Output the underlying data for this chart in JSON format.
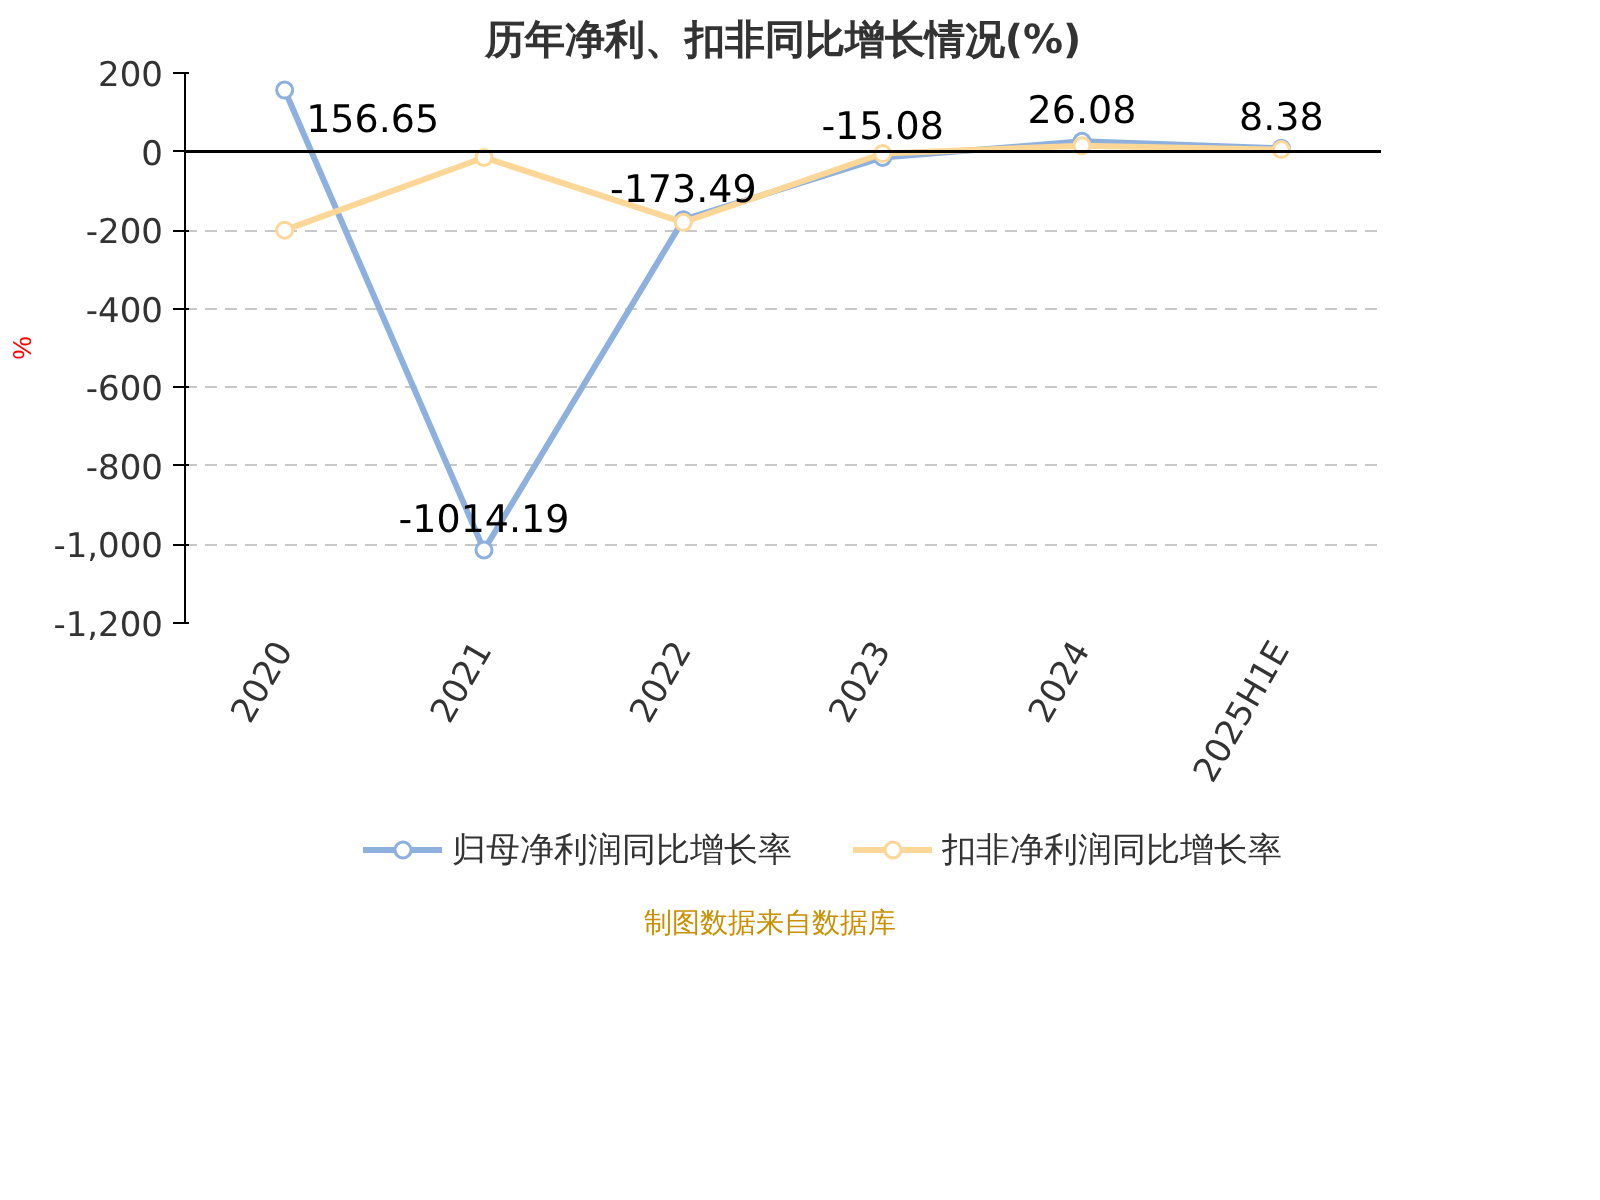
{
  "chart_data": {
    "type": "line",
    "title": "历年净利、扣非同比增长情况(%)",
    "ylabel": "%",
    "categories": [
      "2020",
      "2021",
      "2022",
      "2023",
      "2024",
      "2025H1E"
    ],
    "series": [
      {
        "name": "归母净利润同比增长率",
        "color": "#8eb0de",
        "values": [
          156.65,
          -1014.19,
          -173.49,
          -15.08,
          26.08,
          8.38
        ],
        "value_labels": [
          "156.65",
          "-1014.19",
          "-173.49",
          "-15.08",
          "26.08",
          "8.38"
        ]
      },
      {
        "name": "扣非净利润同比增长率",
        "color": "#fdd797",
        "values": [
          -200,
          -15,
          -180,
          -5,
          15,
          5
        ]
      }
    ],
    "ylim": [
      -1200,
      200
    ],
    "yticks": [
      {
        "value": 200,
        "label": "200"
      },
      {
        "value": 0,
        "label": "0"
      },
      {
        "value": -200,
        "label": "-200"
      },
      {
        "value": -400,
        "label": "-400"
      },
      {
        "value": -600,
        "label": "-600"
      },
      {
        "value": -800,
        "label": "-800"
      },
      {
        "value": -1000,
        "label": "-1,000"
      },
      {
        "value": -1200,
        "label": "-1,200"
      }
    ],
    "grid": "y",
    "legend": "bottom",
    "marker": "circle",
    "line_style": "solid",
    "annotations": [
      "制图数据来自数据库"
    ]
  }
}
